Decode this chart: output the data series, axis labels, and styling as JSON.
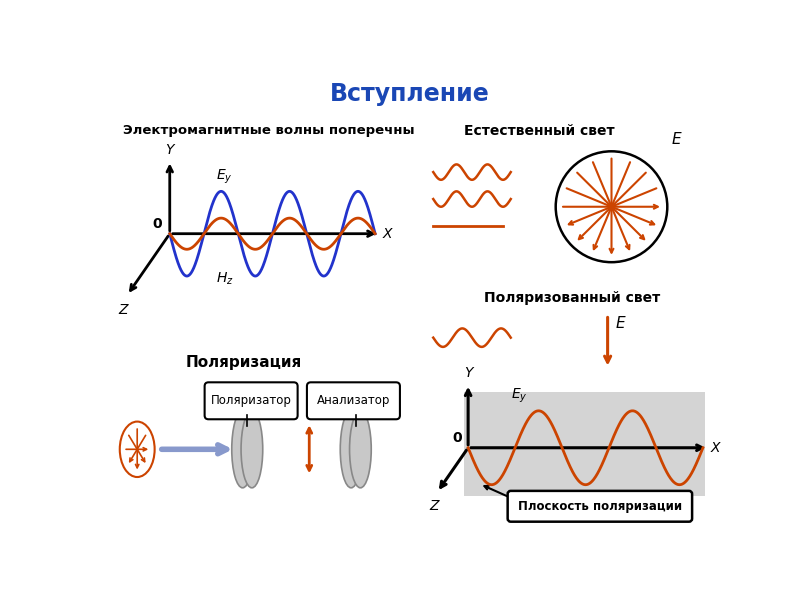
{
  "title": "Вступление",
  "title_color": "#1a47b5",
  "bg_color": "#ffffff",
  "wave_color_orange": "#cc4400",
  "wave_color_blue": "#2233cc",
  "text_color": "#000000",
  "label_em_wave": "Электромагнитные волны поперечны",
  "label_natural": "Естественный свет",
  "label_polarized": "Поляризованный свет",
  "label_polarization": "Поляризация",
  "label_polarizator": "Поляризатор",
  "label_analizator": "Анализатор",
  "label_plane": "Плоскость поляризации"
}
